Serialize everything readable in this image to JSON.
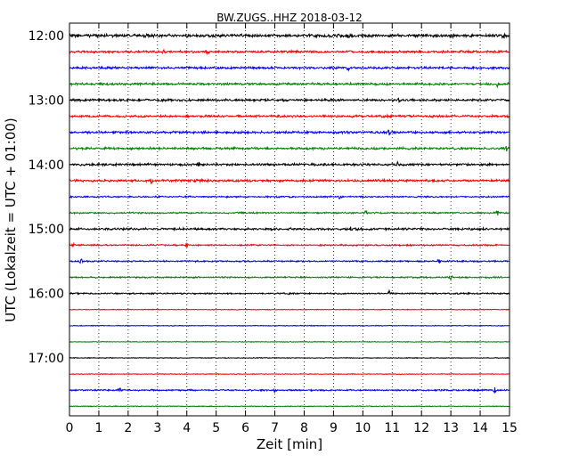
{
  "chart_data": {
    "type": "line",
    "title": "BW.ZUGS..HHZ 2018-03-12",
    "xlabel": "Zeit  [min]",
    "ylabel": "UTC (Lokalzeit = UTC + 01:00)",
    "xlim": [
      0,
      15
    ],
    "x_ticks": [
      "0",
      "1",
      "2",
      "3",
      "4",
      "5",
      "6",
      "7",
      "8",
      "9",
      "10",
      "11",
      "12",
      "13",
      "14",
      "15"
    ],
    "y_ticks": [
      "12:00",
      "13:00",
      "14:00",
      "15:00",
      "16:00",
      "17:00"
    ],
    "grid": "vertical dotted",
    "series_colors": [
      "#000000",
      "#ff0000",
      "#0000ff",
      "#008000"
    ],
    "rows": [
      {
        "start": "12:00",
        "color": "#000000",
        "amplitude": 4,
        "events_min": [
          9.5,
          13.1,
          14.8
        ]
      },
      {
        "start": "12:15",
        "color": "#ff0000",
        "amplitude": 3,
        "events_min": [
          3.2,
          4.7
        ]
      },
      {
        "start": "12:30",
        "color": "#0000ff",
        "amplitude": 3,
        "events_min": [
          9.5
        ]
      },
      {
        "start": "12:45",
        "color": "#008000",
        "amplitude": 3,
        "events_min": [
          14.6
        ]
      },
      {
        "start": "13:00",
        "color": "#000000",
        "amplitude": 3,
        "events_min": [
          11.2
        ]
      },
      {
        "start": "13:15",
        "color": "#ff0000",
        "amplitude": 3,
        "events_min": [
          4.0
        ]
      },
      {
        "start": "13:30",
        "color": "#0000ff",
        "amplitude": 3,
        "events_min": [
          10.9
        ]
      },
      {
        "start": "13:45",
        "color": "#008000",
        "amplitude": 3,
        "events_min": [
          14.9
        ]
      },
      {
        "start": "14:00",
        "color": "#000000",
        "amplitude": 3,
        "events_min": [
          4.4,
          11.2
        ]
      },
      {
        "start": "14:15",
        "color": "#ff0000",
        "amplitude": 3,
        "events_min": [
          2.8,
          4.3
        ]
      },
      {
        "start": "14:30",
        "color": "#0000ff",
        "amplitude": 2,
        "events_min": [
          9.2
        ]
      },
      {
        "start": "14:45",
        "color": "#008000",
        "amplitude": 2,
        "events_min": [
          10.1,
          14.6
        ]
      },
      {
        "start": "15:00",
        "color": "#000000",
        "amplitude": 3,
        "events_min": [
          9.6
        ]
      },
      {
        "start": "15:15",
        "color": "#ff0000",
        "amplitude": 2,
        "events_min": [
          0.1,
          4.0
        ]
      },
      {
        "start": "15:30",
        "color": "#0000ff",
        "amplitude": 2,
        "events_min": [
          0.4,
          12.6
        ]
      },
      {
        "start": "15:45",
        "color": "#008000",
        "amplitude": 2,
        "events_min": [
          13.0
        ]
      },
      {
        "start": "16:00",
        "color": "#000000",
        "amplitude": 2,
        "events_min": [
          7.5,
          10.9
        ]
      },
      {
        "start": "16:15",
        "color": "#ff0000",
        "amplitude": 1,
        "events_min": []
      },
      {
        "start": "16:30",
        "color": "#0000ff",
        "amplitude": 1,
        "events_min": []
      },
      {
        "start": "16:45",
        "color": "#008000",
        "amplitude": 1,
        "events_min": []
      },
      {
        "start": "17:00",
        "color": "#000000",
        "amplitude": 1,
        "events_min": []
      },
      {
        "start": "17:15",
        "color": "#ff0000",
        "amplitude": 1,
        "events_min": []
      },
      {
        "start": "17:30",
        "color": "#0000ff",
        "amplitude": 2,
        "events_min": [
          1.7,
          7.0,
          14.5
        ]
      },
      {
        "start": "17:45",
        "color": "#008000",
        "amplitude": 1,
        "events_min": []
      }
    ]
  }
}
